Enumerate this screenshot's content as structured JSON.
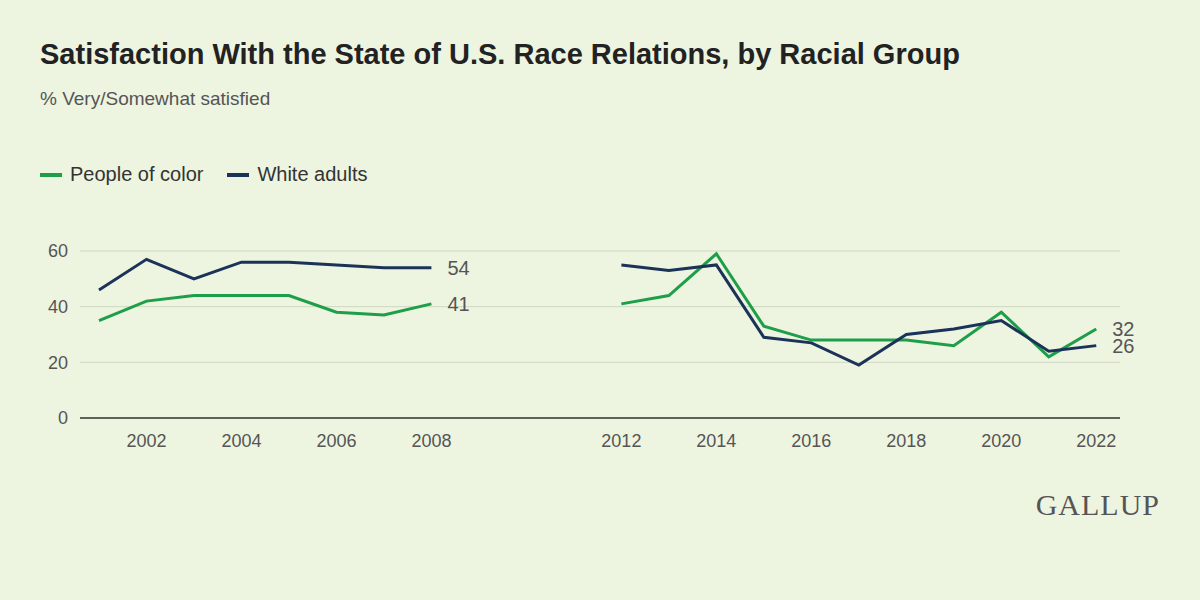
{
  "chart_data": {
    "type": "line",
    "title": "Satisfaction With the State of U.S. Race Relations, by Racial Group",
    "subtitle": "% Very/Somewhat satisfied",
    "source": "GALLUP",
    "x": [
      2001,
      2002,
      2003,
      2004,
      2005,
      2006,
      2007,
      2008,
      2009,
      2010,
      2011,
      2012,
      2013,
      2014,
      2015,
      2016,
      2017,
      2018,
      2019,
      2020,
      2021,
      2022
    ],
    "series": [
      {
        "name": "People of color",
        "color": "#1f9e4a",
        "values": [
          35,
          42,
          44,
          44,
          44,
          38,
          37,
          41,
          null,
          null,
          null,
          41,
          44,
          59,
          33,
          28,
          28,
          28,
          26,
          38,
          22,
          32
        ]
      },
      {
        "name": "White adults",
        "color": "#1b3358",
        "values": [
          46,
          57,
          50,
          56,
          56,
          55,
          54,
          54,
          null,
          null,
          null,
          55,
          53,
          55,
          29,
          27,
          19,
          30,
          32,
          35,
          24,
          26
        ]
      }
    ],
    "xlim": [
      2000.6,
      2022.5
    ],
    "xticks": [
      2002,
      2004,
      2006,
      2008,
      2012,
      2014,
      2016,
      2018,
      2020,
      2022
    ],
    "ylim": [
      0,
      60
    ],
    "yticks": [
      0,
      20,
      40,
      60
    ],
    "grid": true,
    "legend": "top left",
    "annotations": [
      {
        "x": 2008,
        "y": 54,
        "text": "54"
      },
      {
        "x": 2008,
        "y": 41,
        "text": "41"
      },
      {
        "x": 2022,
        "y": 32,
        "text": "32"
      },
      {
        "x": 2022,
        "y": 26,
        "text": "26"
      }
    ]
  }
}
